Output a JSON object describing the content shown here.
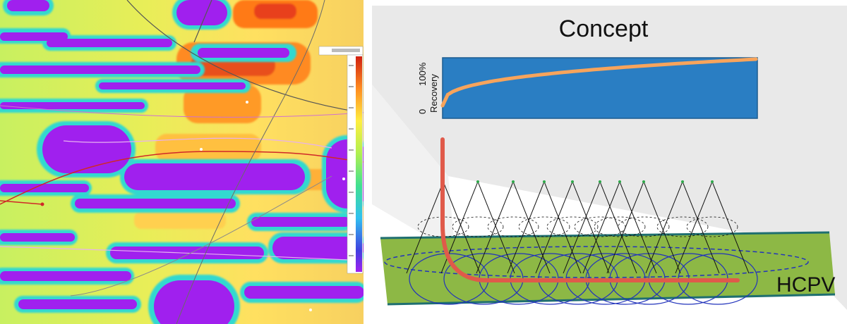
{
  "concept_title": "Concept",
  "recovery_chart": {
    "y_axis_label": "Recovery",
    "y_max_label": "100%",
    "y_min_label": "0"
  },
  "reservoir_label": "HCPV",
  "colors": {
    "chart_fill": "#2a7ec3",
    "recovery_curve": "#f7a45c",
    "reservoir_fill": "#8db845",
    "reservoir_edge": "#1f6f70",
    "wellbore": "#e05a4a",
    "cone_lines": "#111111",
    "drainage_ellipses": "#2233bb",
    "backdrop": "#e9e9e9"
  },
  "map_icons": [
    "saturation-map",
    "color-scale-bar"
  ]
}
